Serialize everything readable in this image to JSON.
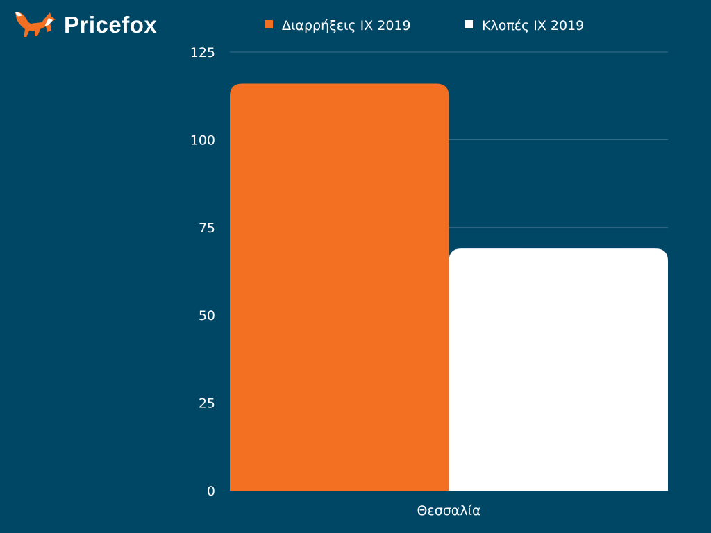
{
  "brand": {
    "name": "Pricefox"
  },
  "colors": {
    "background": "#004766",
    "series1": "#f37023",
    "series2": "#ffffff",
    "grid": "#3a6f8a"
  },
  "chart_data": {
    "type": "bar",
    "title": "",
    "categories": [
      "Θεσσαλία"
    ],
    "series": [
      {
        "name": "Διαρρήξεις ΙΧ 2019",
        "values": [
          116
        ],
        "color": "#f37023"
      },
      {
        "name": "Κλοπές ΙΧ 2019",
        "values": [
          69
        ],
        "color": "#ffffff"
      }
    ],
    "xlabel": "",
    "ylabel": "",
    "ylim": [
      0,
      125
    ],
    "yticks": [
      0,
      25,
      50,
      75,
      100,
      125
    ],
    "grid": true,
    "legend": "top"
  }
}
